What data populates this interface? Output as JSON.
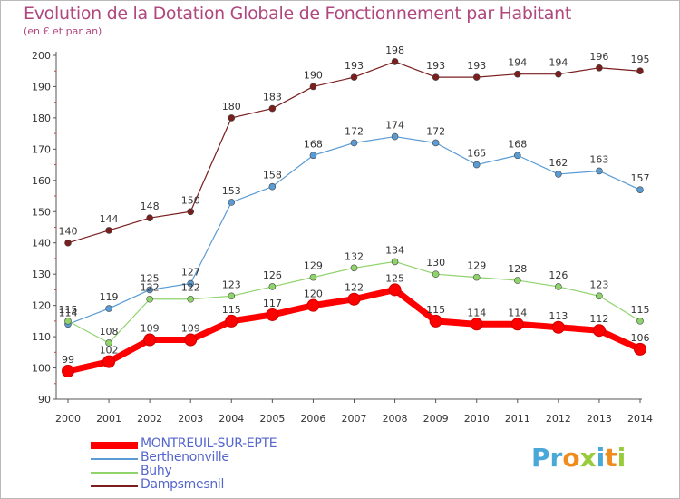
{
  "header": {
    "title": "Evolution de la Dotation Globale de Fonctionnement par Habitant",
    "subtitle": "(en € et par an)"
  },
  "brand": {
    "logo_text": "Proxiti",
    "colors": [
      "#4aa8d8",
      "#f08c1e",
      "#9acb3c"
    ]
  },
  "chart_data": {
    "type": "line",
    "title": "Evolution de la Dotation Globale de Fonctionnement par Habitant",
    "subtitle": "(en € et par an)",
    "xlabel": "",
    "ylabel": "",
    "x": [
      "2000",
      "2001",
      "2002",
      "2003",
      "2004",
      "2005",
      "2006",
      "2007",
      "2008",
      "2009",
      "2010",
      "2011",
      "2012",
      "2013",
      "2014"
    ],
    "ylim": [
      90,
      200
    ],
    "yticks": [
      90,
      100,
      110,
      120,
      130,
      140,
      150,
      160,
      170,
      180,
      190,
      200
    ],
    "grid": false,
    "legend_position": "bottom-left",
    "series": [
      {
        "name": "MONTREUIL-SUR-EPTE",
        "color": "#ff0000",
        "emphasis": true,
        "values": [
          99,
          102,
          109,
          109,
          115,
          117,
          120,
          122,
          125,
          115,
          114,
          114,
          113,
          112,
          106
        ]
      },
      {
        "name": "Berthenonville",
        "color": "#5a9bd4",
        "emphasis": false,
        "values": [
          114,
          119,
          125,
          127,
          153,
          158,
          168,
          172,
          174,
          172,
          165,
          168,
          162,
          163,
          157
        ]
      },
      {
        "name": "Buhy",
        "color": "#8fd36b",
        "emphasis": false,
        "values": [
          115,
          108,
          122,
          122,
          123,
          126,
          129,
          132,
          134,
          130,
          129,
          128,
          126,
          123,
          115
        ]
      },
      {
        "name": "Dampsmesnil",
        "color": "#7a1e1e",
        "emphasis": false,
        "values": [
          140,
          144,
          148,
          150,
          180,
          183,
          190,
          193,
          198,
          193,
          193,
          194,
          194,
          196,
          195
        ]
      }
    ]
  }
}
